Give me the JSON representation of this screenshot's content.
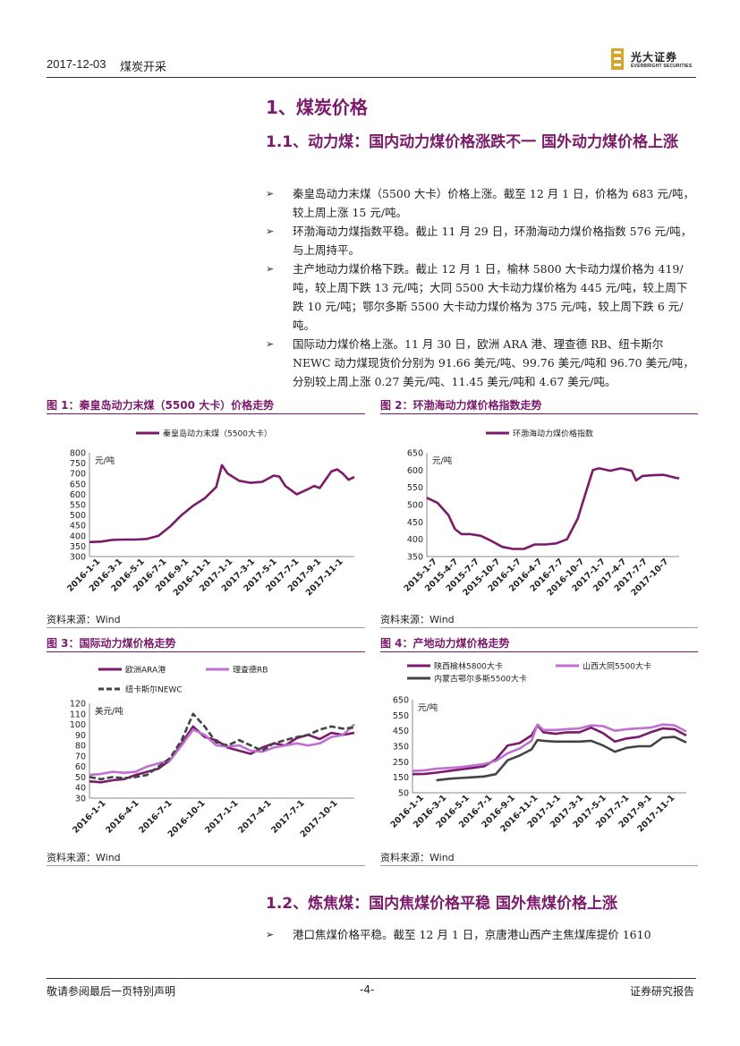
{
  "header": {
    "date": "2017-12-03",
    "category": "煤炭开采",
    "logo_cn": "光大证券",
    "logo_en": "EVERBRIGHT SECURITIES"
  },
  "section1": {
    "title": "1、煤炭价格"
  },
  "section11": {
    "title": "1.1、动力煤：国内动力煤价格涨跌不一 国外动力煤价格上涨"
  },
  "bullets": [
    "秦皇岛动力末煤（5500 大卡）价格上涨。截至 12 月 1 日，价格为 683 元/吨，较上周上涨 15 元/吨。",
    "环渤海动力煤指数平稳。截止 11 月 29 日，环渤海动力煤价格指数 576 元/吨，与上周持平。",
    "主产地动力煤价格下跌。截止 12 月 1 日，榆林 5800 大卡动力煤价格为 419/吨，较上周下跌 13 元/吨；大同 5500 大卡动力煤价格为 445 元/吨，较上周下跌 10 元/吨；鄂尔多斯 5500 大卡动力煤价格为 375 元/吨，较上周下跌 6 元/吨。",
    "国际动力煤价格上涨。11 月 30 日，欧洲 ARA 港、理查德 RB、纽卡斯尔 NEWC 动力煤现货价分别为 91.66 美元/吨、99.76 美元/吨和 96.70 美元/吨，分别较上周上涨 0.27 美元/吨、11.45 美元/吨和 4.67 美元/吨。"
  ],
  "bullet_marker": "➢",
  "figures": {
    "fig1": {
      "title": "图 1：秦皇岛动力末煤（5500 大卡）价格走势",
      "source": "资料来源：Wind"
    },
    "fig2": {
      "title": "图 2：环渤海动力煤价格指数走势",
      "source": "资料来源：Wind"
    },
    "fig3": {
      "title": "图 3：国际动力煤价格走势",
      "source": "资料来源：Wind"
    },
    "fig4": {
      "title": "图 4：产地动力煤价格走势",
      "source": "资料来源：Wind"
    }
  },
  "section12": {
    "title": "1.2、炼焦煤：国内焦煤价格平稳 国外焦煤价格上涨"
  },
  "bullet5": "港口焦煤价格平稳。截至 12 月 1 日，京唐港山西产主焦煤库提价 1610",
  "footer": {
    "left": "敬请参阅最后一页特别声明",
    "center": "-4-",
    "right": "证券研究报告"
  },
  "chart_data": [
    {
      "id": "fig1",
      "type": "line",
      "ylabel": "元/吨",
      "ylim": [
        300,
        800
      ],
      "yticks": [
        300,
        350,
        400,
        450,
        500,
        550,
        600,
        650,
        700,
        750,
        800
      ],
      "xticks": [
        "2016-1-1",
        "2016-3-1",
        "2016-5-1",
        "2016-7-1",
        "2016-9-1",
        "2016-11-1",
        "2017-1-1",
        "2017-3-1",
        "2017-5-1",
        "2017-7-1",
        "2017-9-1",
        "2017-11-1"
      ],
      "xrange": [
        0,
        23
      ],
      "series": [
        {
          "name": "秦皇岛动力末煤（5500大卡）",
          "color": "#7a1a6a",
          "x": [
            0,
            1,
            2,
            3,
            4,
            5,
            6,
            7,
            8,
            9,
            10,
            11,
            11.5,
            12,
            13,
            14,
            15,
            16,
            16.5,
            17,
            18,
            19,
            19.5,
            20,
            21,
            21.5,
            22,
            22.5,
            23
          ],
          "y": [
            370,
            372,
            380,
            382,
            382,
            385,
            400,
            445,
            500,
            545,
            580,
            635,
            740,
            700,
            665,
            655,
            660,
            690,
            685,
            640,
            600,
            625,
            640,
            630,
            710,
            720,
            700,
            670,
            683
          ]
        }
      ]
    },
    {
      "id": "fig2",
      "type": "line",
      "ylabel": "元/吨",
      "ylim": [
        350,
        650
      ],
      "yticks": [
        350,
        400,
        450,
        500,
        550,
        600,
        650
      ],
      "xticks": [
        "2015-1-7",
        "2015-4-7",
        "2015-7-7",
        "2015-10-7",
        "2016-1-7",
        "2016-4-7",
        "2016-7-7",
        "2016-10-7",
        "2017-1-7",
        "2017-4-7",
        "2017-7-7",
        "2017-10-7"
      ],
      "xrange": [
        0,
        11.7
      ],
      "series": [
        {
          "name": "环渤海动力煤价格指数",
          "color": "#7a1a6a",
          "x": [
            0,
            0.5,
            1,
            1.3,
            1.6,
            2,
            2.5,
            3,
            3.5,
            4,
            4.5,
            5,
            5.5,
            6,
            6.5,
            7,
            7.3,
            7.7,
            8,
            8.5,
            9,
            9.5,
            9.7,
            10,
            10.5,
            11,
            11.5,
            11.7
          ],
          "y": [
            520,
            505,
            470,
            430,
            415,
            415,
            410,
            395,
            378,
            372,
            372,
            385,
            385,
            388,
            400,
            460,
            520,
            600,
            605,
            598,
            605,
            598,
            570,
            583,
            585,
            586,
            578,
            576
          ]
        }
      ]
    },
    {
      "id": "fig3",
      "type": "line",
      "ylabel": "美元/吨",
      "ylim": [
        30,
        120
      ],
      "yticks": [
        30,
        40,
        50,
        60,
        70,
        80,
        90,
        100,
        110,
        120
      ],
      "xticks": [
        "2016-1-1",
        "2016-4-1",
        "2016-7-1",
        "2016-10-1",
        "2017-1-1",
        "2017-4-1",
        "2017-7-1",
        "2017-10-1"
      ],
      "xrange": [
        0,
        23
      ],
      "series": [
        {
          "name": "欧洲ARA港",
          "color": "#7a1a6a",
          "dash": false,
          "x": [
            0,
            1,
            2,
            3,
            4,
            5,
            6,
            7,
            8,
            9,
            10,
            11,
            12,
            13,
            14,
            15,
            16,
            17,
            18,
            19,
            20,
            21,
            22,
            23
          ],
          "y": [
            46,
            45,
            47,
            48,
            52,
            55,
            58,
            66,
            82,
            98,
            88,
            85,
            78,
            75,
            72,
            78,
            82,
            80,
            87,
            90,
            86,
            92,
            90,
            92
          ]
        },
        {
          "name": "理查德RB",
          "color": "#c070d0",
          "dash": false,
          "x": [
            0,
            1,
            2,
            3,
            4,
            5,
            6,
            7,
            8,
            9,
            10,
            11,
            12,
            13,
            14,
            15,
            16,
            17,
            18,
            19,
            20,
            21,
            22,
            23
          ],
          "y": [
            52,
            53,
            55,
            54,
            55,
            60,
            63,
            66,
            80,
            95,
            90,
            80,
            79,
            80,
            75,
            74,
            78,
            80,
            82,
            80,
            82,
            88,
            90,
            100
          ]
        },
        {
          "name": "纽卡斯尔NEWC",
          "color": "#444444",
          "dash": true,
          "x": [
            0,
            1,
            2,
            3,
            4,
            5,
            6,
            7,
            8,
            9,
            10,
            11,
            12,
            13,
            14,
            15,
            16,
            17,
            18,
            19,
            20,
            21,
            22,
            23
          ],
          "y": [
            50,
            48,
            50,
            49,
            50,
            52,
            60,
            68,
            85,
            110,
            98,
            83,
            80,
            85,
            80,
            75,
            82,
            85,
            88,
            90,
            95,
            98,
            96,
            97
          ]
        }
      ]
    },
    {
      "id": "fig4",
      "type": "line",
      "ylabel": "元/吨",
      "ylim": [
        50,
        650
      ],
      "yticks": [
        50,
        150,
        250,
        350,
        450,
        550,
        650
      ],
      "xticks": [
        "2016-1-1",
        "2016-3-1",
        "2016-5-1",
        "2016-7-1",
        "2016-9-1",
        "2016-11-1",
        "2017-1-1",
        "2017-3-1",
        "2017-5-1",
        "2017-7-1",
        "2017-9-1",
        "2017-11-1"
      ],
      "xrange": [
        0,
        23
      ],
      "series": [
        {
          "name": "陕西榆林5800大卡",
          "color": "#7a1a6a",
          "dash": false,
          "x": [
            0,
            1,
            2,
            3,
            4,
            5,
            6,
            7,
            8,
            9,
            10,
            10.5,
            11,
            12,
            13,
            14,
            15,
            16,
            17,
            18,
            19,
            20,
            21,
            22,
            23
          ],
          "y": [
            170,
            172,
            180,
            190,
            200,
            210,
            220,
            265,
            355,
            370,
            420,
            485,
            440,
            430,
            440,
            440,
            470,
            435,
            380,
            400,
            410,
            440,
            465,
            460,
            419
          ]
        },
        {
          "name": "山西大同5500大卡",
          "color": "#c070d0",
          "dash": false,
          "x": [
            0,
            1,
            2,
            3,
            4,
            5,
            6,
            7,
            8,
            9,
            10,
            10.5,
            11,
            12,
            13,
            14,
            15,
            16,
            17,
            18,
            19,
            20,
            21,
            22,
            23
          ],
          "y": [
            190,
            195,
            205,
            210,
            215,
            225,
            235,
            255,
            305,
            335,
            385,
            490,
            455,
            455,
            460,
            465,
            485,
            480,
            450,
            460,
            465,
            470,
            490,
            485,
            445
          ]
        },
        {
          "name": "内蒙古鄂尔多斯5500大卡",
          "color": "#444444",
          "dash": false,
          "x": [
            2,
            3,
            4,
            5,
            6,
            7,
            8,
            9,
            10,
            10.5,
            11,
            12,
            13,
            14,
            15,
            16,
            17,
            18,
            19,
            20,
            21,
            22,
            23
          ],
          "y": [
            130,
            140,
            145,
            150,
            155,
            170,
            260,
            290,
            330,
            390,
            385,
            380,
            380,
            380,
            385,
            355,
            315,
            340,
            350,
            350,
            405,
            410,
            375
          ]
        }
      ]
    }
  ]
}
